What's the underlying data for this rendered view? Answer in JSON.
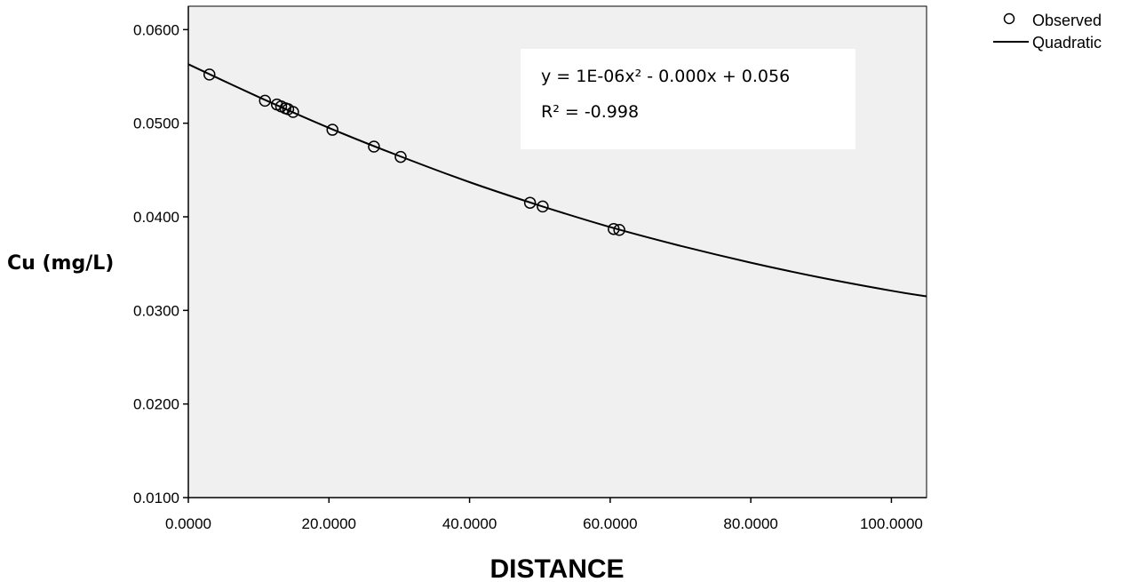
{
  "chart_data": {
    "type": "scatter",
    "xlabel": "DISTANCE",
    "ylabel": "Cu (mg/L)",
    "xlim": [
      0,
      105
    ],
    "ylim": [
      0.01,
      0.0625
    ],
    "x_ticks": [
      0,
      20,
      40,
      60,
      80,
      100
    ],
    "x_tick_labels": [
      "0.0000",
      "20.0000",
      "40.0000",
      "60.0000",
      "80.0000",
      "100.0000"
    ],
    "y_ticks": [
      0.01,
      0.02,
      0.03,
      0.04,
      0.05,
      0.06
    ],
    "y_tick_labels": [
      "0.0100",
      "0.0200",
      "0.0300",
      "0.0400",
      "0.0500",
      "0.0600"
    ],
    "grid": false,
    "legend_position": "top-right",
    "series": [
      {
        "name": "Observed",
        "kind": "scatter",
        "marker": "open-circle",
        "points": [
          {
            "x": 3.0,
            "y": 0.0552
          },
          {
            "x": 10.9,
            "y": 0.0524
          },
          {
            "x": 12.6,
            "y": 0.052
          },
          {
            "x": 13.2,
            "y": 0.0518
          },
          {
            "x": 13.8,
            "y": 0.0516
          },
          {
            "x": 14.2,
            "y": 0.0515
          },
          {
            "x": 14.9,
            "y": 0.0512
          },
          {
            "x": 20.5,
            "y": 0.0493
          },
          {
            "x": 26.4,
            "y": 0.0475
          },
          {
            "x": 30.2,
            "y": 0.0464
          },
          {
            "x": 48.6,
            "y": 0.0415
          },
          {
            "x": 50.4,
            "y": 0.0411
          },
          {
            "x": 60.5,
            "y": 0.0387
          },
          {
            "x": 61.3,
            "y": 0.0386
          }
        ]
      },
      {
        "name": "Quadratic",
        "kind": "line",
        "points": [
          {
            "x": 0,
            "y": 0.0563
          },
          {
            "x": 10,
            "y": 0.0528
          },
          {
            "x": 20,
            "y": 0.0495
          },
          {
            "x": 30,
            "y": 0.0465
          },
          {
            "x": 40,
            "y": 0.0437
          },
          {
            "x": 50,
            "y": 0.0412
          },
          {
            "x": 60,
            "y": 0.0389
          },
          {
            "x": 70,
            "y": 0.0369
          },
          {
            "x": 80,
            "y": 0.0351
          },
          {
            "x": 90,
            "y": 0.0335
          },
          {
            "x": 100,
            "y": 0.0321
          },
          {
            "x": 105,
            "y": 0.0315
          }
        ]
      }
    ],
    "annotation": {
      "equation": "y = 1E-06x² - 0.000x + 0.056",
      "r_squared": "R² = -0.998"
    }
  },
  "legend": {
    "observed_label": "Observed",
    "quadratic_label": "Quadratic"
  },
  "colors": {
    "plot_background": "#f0f0f0",
    "annotation_background": "#ffffff",
    "line": "#000000",
    "marker": "#000000"
  }
}
